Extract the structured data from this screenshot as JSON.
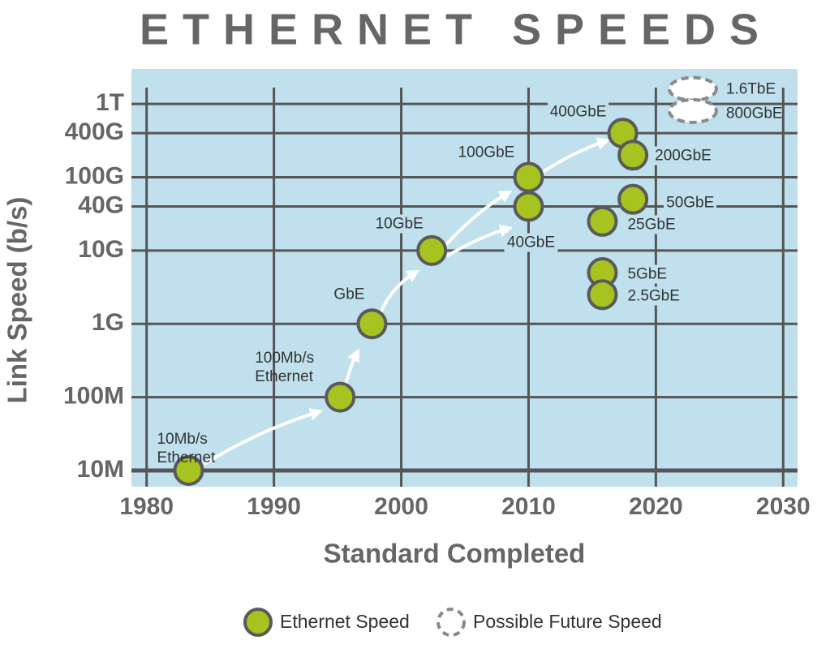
{
  "chart_data": {
    "type": "scatter",
    "title": "ETHERNET SPEEDS",
    "x_label": "Standard Completed",
    "y_label": "Link Speed (b/s)",
    "log_y": true,
    "grid": true,
    "xlim": [
      1979,
      2031
    ],
    "xticks": [
      1980,
      1990,
      2000,
      2010,
      2020,
      2030
    ],
    "ylim": [
      6000000,
      3000000000000
    ],
    "yticks": [
      {
        "value": 10000000,
        "label": "10M"
      },
      {
        "value": 100000000,
        "label": "100M"
      },
      {
        "value": 1000000000,
        "label": "1G"
      },
      {
        "value": 10000000000,
        "label": "10G"
      },
      {
        "value": 40000000000,
        "label": "40G"
      },
      {
        "value": 100000000000,
        "label": "100G"
      },
      {
        "value": 400000000000,
        "label": "400G"
      },
      {
        "value": 1000000000000,
        "label": "1T"
      }
    ],
    "series": [
      {
        "name": "Ethernet Speed",
        "color": "#a6c320",
        "dashed": false,
        "x": [
          1983.3,
          1995.2,
          1997.7,
          2002.4,
          2010,
          2010,
          2017.4,
          2018.2,
          2018.2,
          2015.8,
          2015.8,
          2015.8
        ],
        "values": [
          10000000,
          100000000,
          1000000000,
          10000000000,
          40000000000,
          100000000000,
          400000000000,
          200000000000,
          50000000000,
          25000000000,
          5000000000,
          2500000000
        ],
        "labels": [
          "10Mb/s Ethernet",
          "100Mb/s Ethernet",
          "GbE",
          "10GbE",
          "40GbE",
          "100GbE",
          "400GbE",
          "200GbE",
          "50GbE",
          "25GbE",
          "5GbE",
          "2.5GbE"
        ]
      },
      {
        "name": "Possible Future Speed",
        "color": "#8a8a8a",
        "dashed": true,
        "x": [
          2022.9,
          2022.9
        ],
        "values": [
          1600000000000,
          800000000000
        ],
        "labels": [
          "1.6TbE",
          "800GbE"
        ]
      }
    ]
  }
}
